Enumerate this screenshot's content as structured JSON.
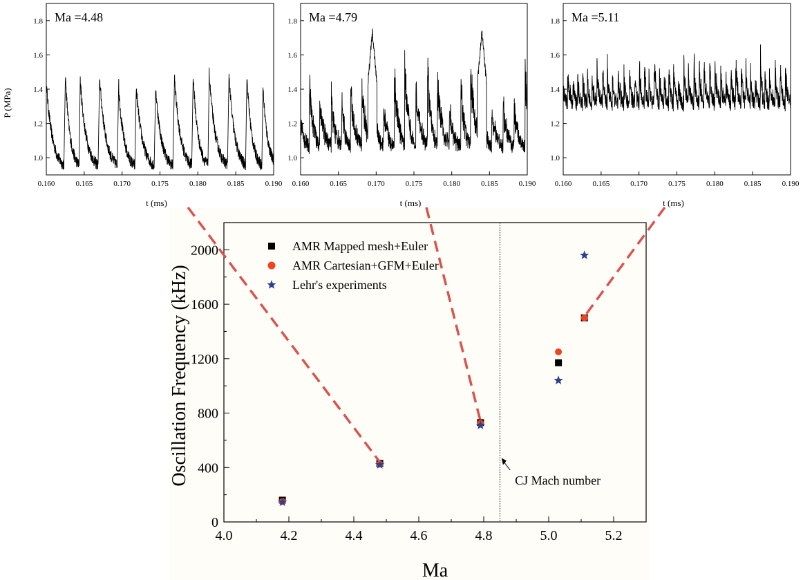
{
  "colors": {
    "trace": "#000000",
    "series_mapped": "#000000",
    "series_cartesian": "#ef4423",
    "series_lehr": "#2e3f8f",
    "connector": "#d9534f",
    "main_bg": "#fffdf8"
  },
  "chart_data": [
    {
      "type": "line",
      "label": "Ma =4.48",
      "ylabel": "P (MPa)",
      "xlabel": "t (ms)",
      "xlim": [
        0.16,
        0.19
      ],
      "ylim": [
        0.9,
        1.9
      ],
      "x_ticks": [
        "0.160",
        "0.165",
        "0.170",
        "0.175",
        "0.180",
        "0.185",
        "0.190"
      ],
      "y_ticks": [
        "1.0",
        "1.2",
        "1.4",
        "1.6",
        "1.8"
      ],
      "signal": {
        "base": 0.93,
        "peak": 1.44,
        "peak_jitter": 0.06,
        "period_ms": 0.00228,
        "style": "sawtooth"
      }
    },
    {
      "type": "line",
      "label": "Ma =4.79",
      "ylabel": "",
      "xlabel": "t (ms)",
      "xlim": [
        0.16,
        0.19
      ],
      "ylim": [
        0.9,
        1.9
      ],
      "x_ticks": [
        "0.160",
        "0.165",
        "0.170",
        "0.175",
        "0.180",
        "0.185",
        "0.190"
      ],
      "y_ticks": [
        "1.0",
        "1.2",
        "1.4",
        "1.6",
        "1.8"
      ],
      "signal": {
        "base": 1.05,
        "peak": 1.5,
        "peak_jitter": 0.15,
        "period_ms": 0.00138,
        "style": "noisy",
        "spikes_at": [
          0.1695,
          0.184
        ],
        "spike_value": 1.76
      }
    },
    {
      "type": "line",
      "label": "Ma =5.11",
      "ylabel": "",
      "xlabel": "t (ms)",
      "xlim": [
        0.16,
        0.19
      ],
      "ylim": [
        0.9,
        1.9
      ],
      "x_ticks": [
        "0.160",
        "0.165",
        "0.170",
        "0.175",
        "0.180",
        "0.185",
        "0.190"
      ],
      "y_ticks": [
        "1.0",
        "1.2",
        "1.4",
        "1.6",
        "1.8"
      ],
      "signal": {
        "base": 1.3,
        "peak": 1.58,
        "peak_jitter": 0.08,
        "period_ms": 0.00067,
        "style": "noisy"
      }
    },
    {
      "type": "scatter",
      "xlabel": "Ma",
      "ylabel": "Oscillation Frequency (kHz)",
      "xlim": [
        4.0,
        5.3
      ],
      "ylim": [
        0,
        2200
      ],
      "x_ticks": [
        4.0,
        4.2,
        4.4,
        4.6,
        4.8,
        5.0,
        5.2
      ],
      "x_tick_labels": [
        "4.0",
        "4.2",
        "4.4",
        "4.6",
        "4.8",
        "5.0",
        "5.2"
      ],
      "y_ticks": [
        0,
        400,
        800,
        1200,
        1600,
        2000
      ],
      "y_tick_labels": [
        "0",
        "400",
        "800",
        "1200",
        "1600",
        "2000"
      ],
      "legend_position": "top-left",
      "series": [
        {
          "name": "AMR Mapped mesh+Euler",
          "marker": "square",
          "x": [
            4.18,
            4.48,
            4.79,
            5.03,
            5.11
          ],
          "y": [
            160,
            430,
            730,
            1170,
            1500
          ]
        },
        {
          "name": "AMR Cartesian+GFM+Euler",
          "marker": "circle",
          "x": [
            4.18,
            4.48,
            4.79,
            5.03,
            5.11
          ],
          "y": [
            150,
            425,
            725,
            1250,
            1500
          ]
        },
        {
          "name": "Lehr's experiments",
          "marker": "star",
          "x": [
            4.18,
            4.48,
            4.79,
            5.03,
            5.11
          ],
          "y": [
            145,
            420,
            710,
            1040,
            1960
          ]
        }
      ],
      "reference_line": {
        "x": 4.85,
        "style": "dotted"
      },
      "annotation": {
        "text": "CJ Mach number",
        "x": 5.03,
        "y": 300,
        "arrow_to": {
          "x": 4.855,
          "y": 470
        }
      }
    }
  ]
}
